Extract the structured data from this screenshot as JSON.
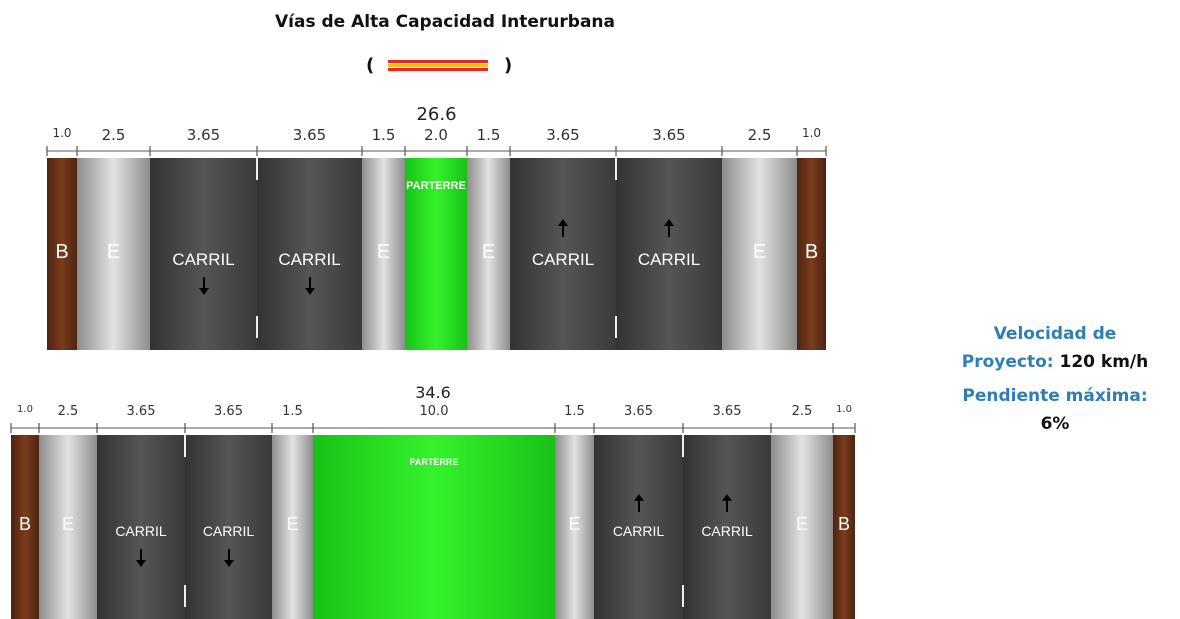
{
  "title": "Vías de Alta Capacidad Interurbana",
  "legend": {
    "open": "(",
    "close": ")",
    "colors": [
      "#e8262a",
      "#f4c21a",
      "#e8262a"
    ]
  },
  "colors": {
    "shoulder_inner": "#c9c9c9",
    "lane": "#4a4a4a",
    "parterre": "#22e01e",
    "berm": "#6e3418",
    "info_label": "#2e7fb3"
  },
  "sections": [
    {
      "total": "26.6",
      "bands": [
        {
          "type": "berm",
          "width": "1.0",
          "label": "B"
        },
        {
          "type": "shoulder",
          "width": "2.5",
          "label": "E"
        },
        {
          "type": "lane",
          "width": "3.65",
          "label": "CARRIL",
          "arrow": "down"
        },
        {
          "type": "lane",
          "width": "3.65",
          "label": "CARRIL",
          "arrow": "down"
        },
        {
          "type": "shoulder",
          "width": "1.5",
          "label": "E"
        },
        {
          "type": "parterre",
          "width": "2.0",
          "label": "PARTERRE"
        },
        {
          "type": "shoulder",
          "width": "1.5",
          "label": "E"
        },
        {
          "type": "lane",
          "width": "3.65",
          "label": "CARRIL",
          "arrow": "up"
        },
        {
          "type": "lane",
          "width": "3.65",
          "label": "CARRIL",
          "arrow": "up"
        },
        {
          "type": "shoulder",
          "width": "2.5",
          "label": "E"
        },
        {
          "type": "berm",
          "width": "1.0",
          "label": "B"
        }
      ]
    },
    {
      "total": "34.6",
      "bands": [
        {
          "type": "berm",
          "width": "1.0",
          "label": "B"
        },
        {
          "type": "shoulder",
          "width": "2.5",
          "label": "E"
        },
        {
          "type": "lane",
          "width": "3.65",
          "label": "CARRIL",
          "arrow": "down"
        },
        {
          "type": "lane",
          "width": "3.65",
          "label": "CARRIL",
          "arrow": "down"
        },
        {
          "type": "shoulder",
          "width": "1.5",
          "label": "E"
        },
        {
          "type": "parterre",
          "width": "10.0",
          "label": "PARTERRE"
        },
        {
          "type": "shoulder",
          "width": "1.5",
          "label": "E"
        },
        {
          "type": "lane",
          "width": "3.65",
          "label": "CARRIL",
          "arrow": "up"
        },
        {
          "type": "lane",
          "width": "3.65",
          "label": "CARRIL",
          "arrow": "up"
        },
        {
          "type": "shoulder",
          "width": "2.5",
          "label": "E"
        },
        {
          "type": "berm",
          "width": "1.0",
          "label": "B"
        }
      ]
    }
  ],
  "info": {
    "speed_label_1": "Velocidad de",
    "speed_label_2": "Proyecto:",
    "speed_value": "120 km/h",
    "slope_label": "Pendiente máxima:",
    "slope_value": "6%"
  }
}
